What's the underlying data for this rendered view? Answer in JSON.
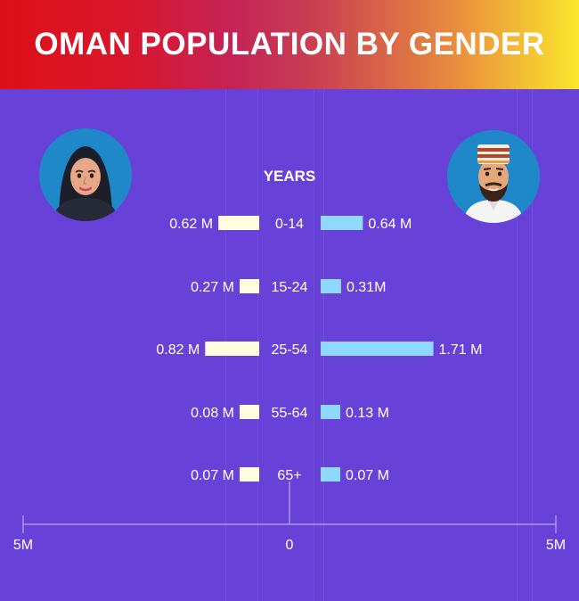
{
  "title": "OMAN POPULATION BY GENDER",
  "colors": {
    "background": "#6842d8",
    "female_bar": "#fffde0",
    "male_bar": "#8fd9ff",
    "text": "#ffffff"
  },
  "icons": {
    "female": "woman-in-hijab-avatar-icon",
    "male": "man-in-kuma-cap-avatar-icon"
  },
  "chart_data": {
    "type": "bar",
    "orientation": "horizontal-diverging",
    "title": "OMAN POPULATION BY GENDER",
    "category_axis_label": "YEARS",
    "categories": [
      "0-14",
      "15-24",
      "25-54",
      "55-64",
      "65+"
    ],
    "series": [
      {
        "values": [
          0.62,
          0.27,
          0.82,
          0.08,
          0.07
        ],
        "labels": [
          "0.62 M",
          "0.27 M",
          "0.82 M",
          "0.08 M",
          "0.07 M"
        ]
      },
      {
        "values": [
          0.64,
          0.31,
          1.71,
          0.13,
          0.07
        ],
        "labels": [
          "0.64 M",
          "0.31M",
          "1.71 M",
          "0.13 M",
          "0.07 M"
        ]
      }
    ],
    "axis": {
      "ticks": [
        "5M",
        "0",
        "5M"
      ],
      "range": [
        -5,
        5
      ]
    },
    "grid": false,
    "legend": "none"
  }
}
